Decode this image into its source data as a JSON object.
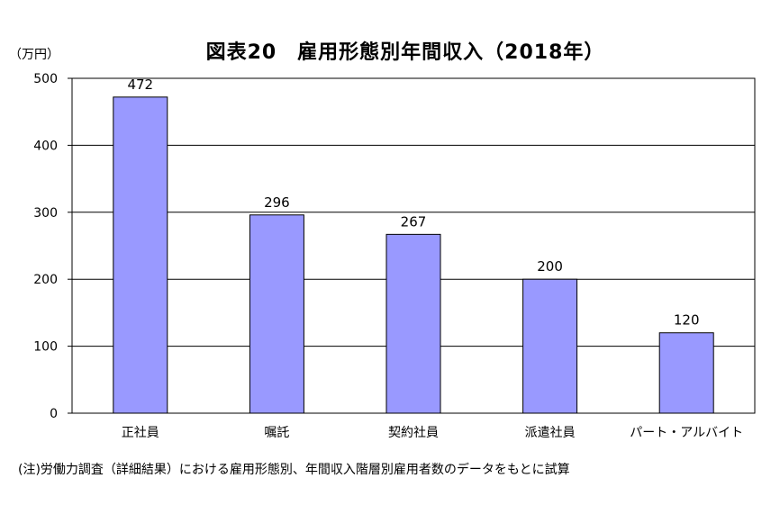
{
  "chart_data": {
    "type": "bar",
    "title": "図表20　雇用形態別年間収入（2018年）",
    "y_unit": "（万円）",
    "categories": [
      "正社員",
      "嘱託",
      "契約社員",
      "派遣社員",
      "パート・アルバイト"
    ],
    "values": [
      472,
      296,
      267,
      200,
      120
    ],
    "data_labels": [
      "472",
      "296",
      "267",
      "200",
      "120"
    ],
    "ylim": [
      0,
      500
    ],
    "yticks": [
      0,
      100,
      200,
      300,
      400,
      500
    ],
    "ytick_labels": [
      "0",
      "100",
      "200",
      "300",
      "400",
      "500"
    ],
    "grid": true,
    "legend": "none",
    "colors": {
      "bar": "#9999ff",
      "bar_stroke": "#000000",
      "grid": "#000000"
    },
    "note": "(注)労働力調査（詳細結果）における雇用形態別、年間収入階層別雇用者数のデータをもとに試算"
  }
}
